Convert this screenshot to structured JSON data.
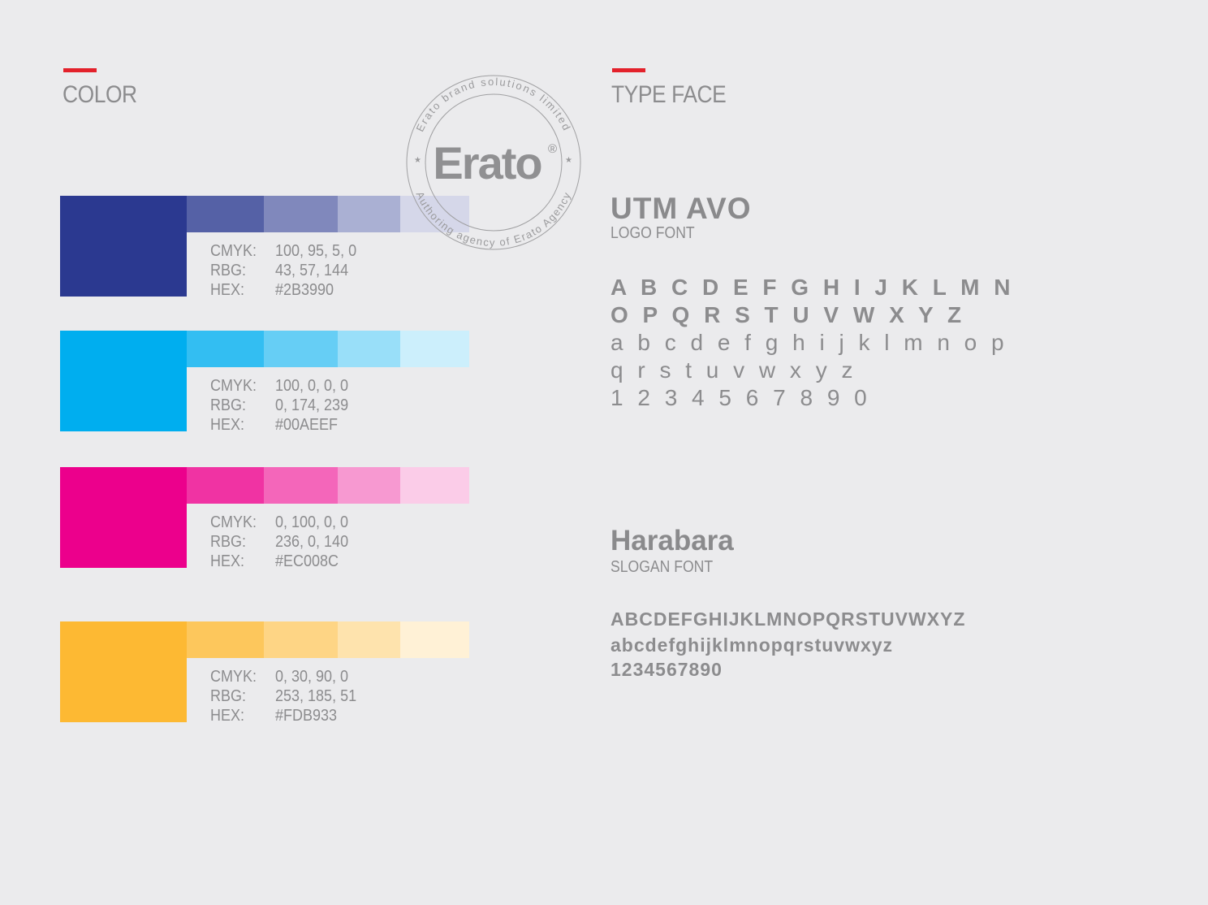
{
  "color_section": {
    "title": "COLOR",
    "swatches": [
      {
        "cmyk_label": "CMYK:",
        "cmyk": "100, 95, 5, 0",
        "rgb_label": "RBG:",
        "rgb": "43, 57, 144",
        "hex_label": "HEX:",
        "hex": "#2B3990"
      },
      {
        "cmyk_label": "CMYK:",
        "cmyk": "100, 0, 0, 0",
        "rgb_label": "RBG:",
        "rgb": "0, 174, 239",
        "hex_label": "HEX:",
        "hex": "#00AEEF"
      },
      {
        "cmyk_label": "CMYK:",
        "cmyk": "0, 100, 0, 0",
        "rgb_label": "RBG:",
        "rgb": "236, 0, 140",
        "hex_label": "HEX:",
        "hex": "#EC008C"
      },
      {
        "cmyk_label": "CMYK:",
        "cmyk": "0, 30, 90, 0",
        "rgb_label": "RBG:",
        "rgb": "253, 185, 51",
        "hex_label": "HEX:",
        "hex": "#FDB933"
      }
    ]
  },
  "stamp": {
    "top_text": "Erato brand solutions limited",
    "bottom_text": "Authoring agency of Erato Agency",
    "logo": "Erato",
    "mark": "®"
  },
  "typeface_section": {
    "title": "TYPE FACE",
    "fonts": [
      {
        "name": "UTM AVO",
        "role": "LOGO FONT",
        "lines": [
          "A B C D E F G H I J K L M N",
          "O P Q R S T U V W X Y Z",
          "a b c d e f g h i j k l m n o p",
          "q r s t u v w x y z",
          "1 2 3 4 5 6 7 8 9 0"
        ]
      },
      {
        "name": "Harabara",
        "role": "SLOGAN FONT",
        "lines": [
          "ABCDEFGHIJKLMNOPQRSTUVWXYZ",
          "abcdefghijklmnopqrstuvwxyz",
          "1234567890"
        ]
      }
    ]
  }
}
